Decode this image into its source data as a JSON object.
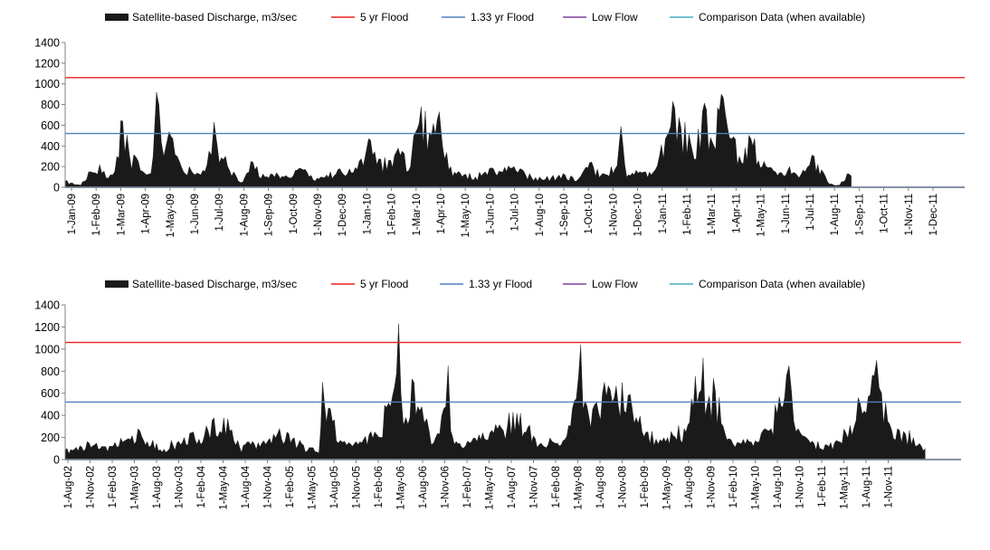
{
  "colors": {
    "discharge": "#1a1a1a",
    "flood_5yr": "#e8201c",
    "flood_133yr": "#4f81bd",
    "low_flow": "#7b3f9e",
    "comparison": "#4bacc6",
    "axis": "#808080"
  },
  "legend": {
    "discharge": "Satellite-based Discharge, m3/sec",
    "flood_5yr": "5 yr Flood",
    "flood_133yr": "1.33 yr Flood",
    "low_flow": "Low Flow",
    "comparison": "Comparison Data (when available)"
  },
  "chart_data": [
    {
      "type": "area",
      "series": [
        {
          "name": "Satellite-based Discharge, m3/sec",
          "kind": "area",
          "color": "#1a1a1a",
          "x": [
            "2009-01-01",
            "2009-01-10",
            "2009-01-20",
            "2009-02-01",
            "2009-02-12",
            "2009-02-25",
            "2009-03-05",
            "2009-03-12",
            "2009-03-20",
            "2009-03-31",
            "2009-04-10",
            "2009-04-18",
            "2009-04-22",
            "2009-04-25",
            "2009-05-01",
            "2009-05-05",
            "2009-05-12",
            "2009-05-20",
            "2009-06-01",
            "2009-06-15",
            "2009-06-25",
            "2009-07-01",
            "2009-07-05",
            "2009-07-15",
            "2009-07-25",
            "2009-08-05",
            "2009-08-15",
            "2009-09-01",
            "2009-09-15",
            "2009-10-01",
            "2009-10-15",
            "2009-11-01",
            "2009-11-15",
            "2009-12-01",
            "2009-12-15",
            "2010-01-01",
            "2010-01-05",
            "2010-01-15",
            "2010-02-01",
            "2010-02-10",
            "2010-02-25",
            "2010-03-01",
            "2010-03-05",
            "2010-03-10",
            "2010-03-20",
            "2010-04-01",
            "2010-04-05",
            "2010-04-15",
            "2010-05-01",
            "2010-05-15",
            "2010-06-01",
            "2010-06-15",
            "2010-07-01",
            "2010-07-15",
            "2010-08-01",
            "2010-08-15",
            "2010-09-01",
            "2010-09-15",
            "2010-10-01",
            "2010-10-15",
            "2010-11-01",
            "2010-11-08",
            "2010-11-15",
            "2010-12-01",
            "2010-12-15",
            "2011-01-01",
            "2011-01-05",
            "2011-01-10",
            "2011-01-20",
            "2011-02-01",
            "2011-02-05",
            "2011-02-15",
            "2011-02-25",
            "2011-03-01",
            "2011-03-10",
            "2011-03-20",
            "2011-04-01",
            "2011-04-15",
            "2011-05-01",
            "2011-05-15",
            "2011-06-01",
            "2011-06-10",
            "2011-06-20",
            "2011-07-01",
            "2011-07-10",
            "2011-07-20",
            "2011-08-01",
            "2011-08-10",
            "2011-08-15"
          ],
          "y": [
            60,
            40,
            20,
            150,
            220,
            120,
            300,
            640,
            320,
            250,
            120,
            300,
            920,
            800,
            300,
            450,
            470,
            250,
            200,
            120,
            350,
            630,
            400,
            300,
            150,
            50,
            250,
            100,
            140,
            90,
            180,
            60,
            120,
            180,
            140,
            300,
            470,
            220,
            260,
            380,
            200,
            500,
            560,
            780,
            530,
            730,
            400,
            200,
            120,
            100,
            180,
            150,
            200,
            120,
            100,
            90,
            120,
            60,
            240,
            120,
            180,
            590,
            100,
            150,
            120,
            470,
            530,
            830,
            580,
            420,
            270,
            730,
            480,
            400,
            900,
            480,
            300,
            470,
            250,
            150,
            200,
            120,
            150,
            300,
            170,
            30,
            20,
            130,
            110
          ]
        },
        {
          "name": "5 yr Flood",
          "kind": "line",
          "color": "#e8201c",
          "y_const": 1060
        },
        {
          "name": "1.33 yr Flood",
          "kind": "line",
          "color": "#4f81bd",
          "y_const": 520
        },
        {
          "name": "Low Flow",
          "kind": "line",
          "color": "#7b3f9e",
          "y_const": 0
        },
        {
          "name": "Comparison Data (when available)",
          "kind": "line",
          "color": "#4bacc6",
          "y_const": 0
        }
      ],
      "xlim": [
        "2009-01-01",
        "2011-12-31"
      ],
      "ylim": [
        0,
        1400
      ],
      "yticks": [
        "0",
        "200",
        "400",
        "600",
        "800",
        "1000",
        "1200",
        "1400"
      ],
      "xticks": [
        "1-Jan-09",
        "1-Feb-09",
        "1-Mar-09",
        "1-Apr-09",
        "1-May-09",
        "1-Jun-09",
        "1-Jul-09",
        "1-Aug-09",
        "1-Sep-09",
        "1-Oct-09",
        "1-Nov-09",
        "1-Dec-09",
        "1-Jan-10",
        "1-Feb-10",
        "1-Mar-10",
        "1-Apr-10",
        "1-May-10",
        "1-Jun-10",
        "1-Jul-10",
        "1-Aug-10",
        "1-Sep-10",
        "1-Oct-10",
        "1-Nov-10",
        "1-Dec-10",
        "1-Jan-11",
        "1-Feb-11",
        "1-Mar-11",
        "1-Apr-11",
        "1-May-11",
        "1-Jun-11",
        "1-Jul-11",
        "1-Aug-11",
        "1-Sep-11",
        "1-Oct-11",
        "1-Nov-11",
        "1-Dec-11"
      ],
      "legend": "top",
      "grid": false
    },
    {
      "type": "area",
      "series": [
        {
          "name": "Satellite-based Discharge, m3/sec",
          "kind": "area",
          "color": "#1a1a1a",
          "x": [
            "2002-08-01",
            "2002-11-01",
            "2003-02-01",
            "2003-05-15",
            "2003-08-01",
            "2003-11-01",
            "2004-02-01",
            "2004-04-01",
            "2004-06-01",
            "2004-09-01",
            "2004-11-01",
            "2005-02-01",
            "2005-04-01",
            "2005-04-15",
            "2005-05-15",
            "2005-06-15",
            "2005-08-01",
            "2005-11-01",
            "2006-01-01",
            "2006-02-01",
            "2006-02-10",
            "2006-03-01",
            "2006-04-01",
            "2006-05-01",
            "2006-05-20",
            "2006-06-15",
            "2006-08-01",
            "2006-08-10",
            "2006-08-20",
            "2006-10-01",
            "2006-11-01",
            "2007-02-01",
            "2007-05-01",
            "2007-08-01",
            "2007-11-01",
            "2007-12-15",
            "2008-01-01",
            "2008-01-10",
            "2008-02-01",
            "2008-04-01",
            "2008-05-01",
            "2008-07-01",
            "2008-08-01",
            "2008-09-15",
            "2008-11-01",
            "2009-02-01",
            "2009-03-01",
            "2009-04-15",
            "2009-05-01",
            "2009-06-01",
            "2009-07-15",
            "2009-09-01",
            "2009-11-01",
            "2010-01-01",
            "2010-02-01",
            "2010-03-01",
            "2010-03-20",
            "2010-04-15",
            "2010-06-01",
            "2010-09-01",
            "2010-10-15",
            "2010-12-01",
            "2011-01-01",
            "2011-02-01",
            "2011-02-10",
            "2011-03-01",
            "2011-04-01",
            "2011-05-01",
            "2011-06-01",
            "2011-07-01",
            "2011-08-01",
            "2011-08-15"
          ],
          "y": [
            80,
            150,
            120,
            260,
            90,
            200,
            260,
            380,
            110,
            170,
            280,
            130,
            60,
            700,
            460,
            150,
            140,
            250,
            480,
            1230,
            600,
            380,
            700,
            480,
            370,
            150,
            480,
            850,
            260,
            110,
            150,
            240,
            420,
            150,
            180,
            550,
            1040,
            450,
            400,
            700,
            520,
            580,
            380,
            250,
            180,
            280,
            550,
            920,
            500,
            620,
            180,
            150,
            170,
            280,
            570,
            760,
            620,
            280,
            150,
            150,
            240,
            560,
            420,
            760,
            900,
            600,
            320,
            280,
            230,
            200,
            120,
            100
          ]
        },
        {
          "name": "5 yr Flood",
          "kind": "line",
          "color": "#e8201c",
          "y_const": 1060
        },
        {
          "name": "1.33 yr Flood",
          "kind": "line",
          "color": "#4f81bd",
          "y_const": 520
        },
        {
          "name": "Low Flow",
          "kind": "line",
          "color": "#7b3f9e",
          "y_const": 0
        },
        {
          "name": "Comparison Data (when available)",
          "kind": "line",
          "color": "#4bacc6",
          "y_const": 0
        }
      ],
      "xlim": [
        "2002-08-01",
        "2011-12-31"
      ],
      "ylim": [
        0,
        1400
      ],
      "yticks": [
        "0",
        "200",
        "400",
        "600",
        "800",
        "1000",
        "1200",
        "1400"
      ],
      "xticks": [
        "1-Aug-02",
        "1-Nov-02",
        "1-Feb-03",
        "1-May-03",
        "1-Aug-03",
        "1-Nov-03",
        "1-Feb-04",
        "1-May-04",
        "1-Aug-04",
        "1-Nov-04",
        "1-Feb-05",
        "1-May-05",
        "1-Aug-05",
        "1-Nov-05",
        "1-Feb-06",
        "1-May-06",
        "1-Aug-06",
        "1-Nov-06",
        "1-Feb-07",
        "1-May-07",
        "1-Aug-07",
        "1-Nov-07",
        "1-Feb-08",
        "1-May-08",
        "1-Aug-08",
        "1-Nov-08",
        "1-Feb-09",
        "1-May-09",
        "1-Aug-09",
        "1-Nov-09",
        "1-Feb-10",
        "1-May-10",
        "1-Aug-10",
        "1-Nov-10",
        "1-Feb-11",
        "1-May-11",
        "1-Aug-11",
        "1-Nov-11"
      ],
      "legend": "top",
      "grid": false
    }
  ]
}
